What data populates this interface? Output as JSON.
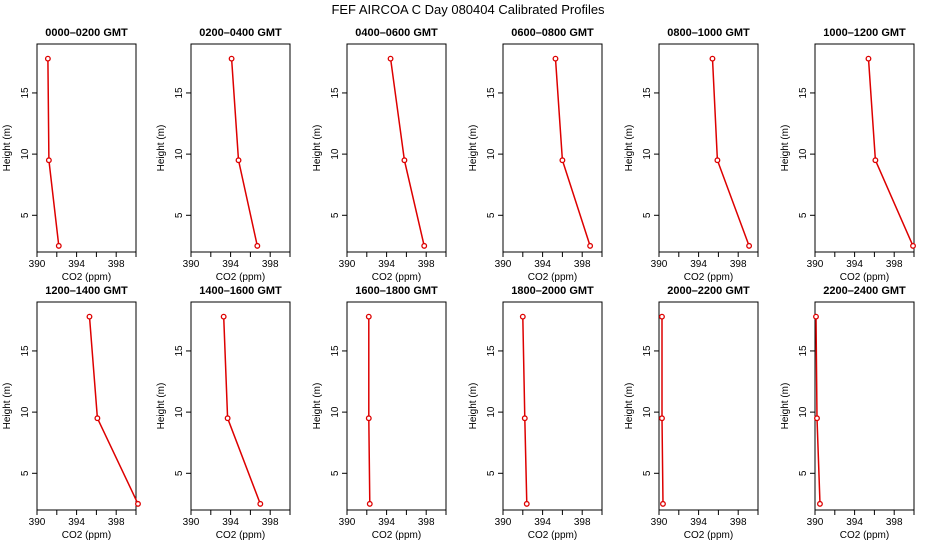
{
  "figure": {
    "title": "FEF AIRCOA C  Day 080404  Calibrated Profiles"
  },
  "colors": {
    "series": "#dd0000",
    "axis": "#000000",
    "background": "#ffffff"
  },
  "chart_data": [
    {
      "type": "line",
      "title": "0000–0200 GMT",
      "xlabel": "CO2 (ppm)",
      "ylabel": "Height (m)",
      "xlim": [
        390,
        400
      ],
      "ylim": [
        2,
        19
      ],
      "xticks": [
        390,
        394,
        398
      ],
      "yticks": [
        5,
        10,
        15
      ],
      "x": [
        391.1,
        391.2,
        392.2
      ],
      "y": [
        17.8,
        9.5,
        2.5
      ]
    },
    {
      "type": "line",
      "title": "0200–0400 GMT",
      "xlabel": "CO2 (ppm)",
      "ylabel": "Height (m)",
      "xlim": [
        390,
        400
      ],
      "ylim": [
        2,
        19
      ],
      "xticks": [
        390,
        394,
        398
      ],
      "yticks": [
        5,
        10,
        15
      ],
      "x": [
        394.1,
        394.8,
        396.7
      ],
      "y": [
        17.8,
        9.5,
        2.5
      ]
    },
    {
      "type": "line",
      "title": "0400–0600 GMT",
      "xlabel": "CO2 (ppm)",
      "ylabel": "Height (m)",
      "xlim": [
        390,
        400
      ],
      "ylim": [
        2,
        19
      ],
      "xticks": [
        390,
        394,
        398
      ],
      "yticks": [
        5,
        10,
        15
      ],
      "x": [
        394.4,
        395.8,
        397.8
      ],
      "y": [
        17.8,
        9.5,
        2.5
      ]
    },
    {
      "type": "line",
      "title": "0600–0800 GMT",
      "xlabel": "CO2 (ppm)",
      "ylabel": "Height (m)",
      "xlim": [
        390,
        400
      ],
      "ylim": [
        2,
        19
      ],
      "xticks": [
        390,
        394,
        398
      ],
      "yticks": [
        5,
        10,
        15
      ],
      "x": [
        395.3,
        396.0,
        398.8
      ],
      "y": [
        17.8,
        9.5,
        2.5
      ]
    },
    {
      "type": "line",
      "title": "0800–1000 GMT",
      "xlabel": "CO2 (ppm)",
      "ylabel": "Height (m)",
      "xlim": [
        390,
        400
      ],
      "ylim": [
        2,
        19
      ],
      "xticks": [
        390,
        394,
        398
      ],
      "yticks": [
        5,
        10,
        15
      ],
      "x": [
        395.4,
        395.9,
        399.1
      ],
      "y": [
        17.8,
        9.5,
        2.5
      ]
    },
    {
      "type": "line",
      "title": "1000–1200 GMT",
      "xlabel": "CO2 (ppm)",
      "ylabel": "Height (m)",
      "xlim": [
        390,
        400
      ],
      "ylim": [
        2,
        19
      ],
      "xticks": [
        390,
        394,
        398
      ],
      "yticks": [
        5,
        10,
        15
      ],
      "x": [
        395.4,
        396.1,
        399.9
      ],
      "y": [
        17.8,
        9.5,
        2.5
      ]
    },
    {
      "type": "line",
      "title": "1200–1400 GMT",
      "xlabel": "CO2 (ppm)",
      "ylabel": "Height (m)",
      "xlim": [
        390,
        400
      ],
      "ylim": [
        2,
        19
      ],
      "xticks": [
        390,
        394,
        398
      ],
      "yticks": [
        5,
        10,
        15
      ],
      "x": [
        395.3,
        396.1,
        400.2
      ],
      "y": [
        17.8,
        9.5,
        2.5
      ]
    },
    {
      "type": "line",
      "title": "1400–1600 GMT",
      "xlabel": "CO2 (ppm)",
      "ylabel": "Height (m)",
      "xlim": [
        390,
        400
      ],
      "ylim": [
        2,
        19
      ],
      "xticks": [
        390,
        394,
        398
      ],
      "yticks": [
        5,
        10,
        15
      ],
      "x": [
        393.3,
        393.7,
        397.0
      ],
      "y": [
        17.8,
        9.5,
        2.5
      ]
    },
    {
      "type": "line",
      "title": "1600–1800 GMT",
      "xlabel": "CO2 (ppm)",
      "ylabel": "Height (m)",
      "xlim": [
        390,
        400
      ],
      "ylim": [
        2,
        19
      ],
      "xticks": [
        390,
        394,
        398
      ],
      "yticks": [
        5,
        10,
        15
      ],
      "x": [
        392.2,
        392.2,
        392.3
      ],
      "y": [
        17.8,
        9.5,
        2.5
      ]
    },
    {
      "type": "line",
      "title": "1800–2000 GMT",
      "xlabel": "CO2 (ppm)",
      "ylabel": "Height (m)",
      "xlim": [
        390,
        400
      ],
      "ylim": [
        2,
        19
      ],
      "xticks": [
        390,
        394,
        398
      ],
      "yticks": [
        5,
        10,
        15
      ],
      "x": [
        392.0,
        392.2,
        392.4
      ],
      "y": [
        17.8,
        9.5,
        2.5
      ]
    },
    {
      "type": "line",
      "title": "2000–2200 GMT",
      "xlabel": "CO2 (ppm)",
      "ylabel": "Height (m)",
      "xlim": [
        390,
        400
      ],
      "ylim": [
        2,
        19
      ],
      "xticks": [
        390,
        394,
        398
      ],
      "yticks": [
        5,
        10,
        15
      ],
      "x": [
        390.3,
        390.3,
        390.4
      ],
      "y": [
        17.8,
        9.5,
        2.5
      ]
    },
    {
      "type": "line",
      "title": "2200–2400 GMT",
      "xlabel": "CO2 (ppm)",
      "ylabel": "Height (m)",
      "xlim": [
        390,
        400
      ],
      "ylim": [
        2,
        19
      ],
      "xticks": [
        390,
        394,
        398
      ],
      "yticks": [
        5,
        10,
        15
      ],
      "x": [
        390.1,
        390.2,
        390.5
      ],
      "y": [
        17.8,
        9.5,
        2.5
      ]
    }
  ]
}
